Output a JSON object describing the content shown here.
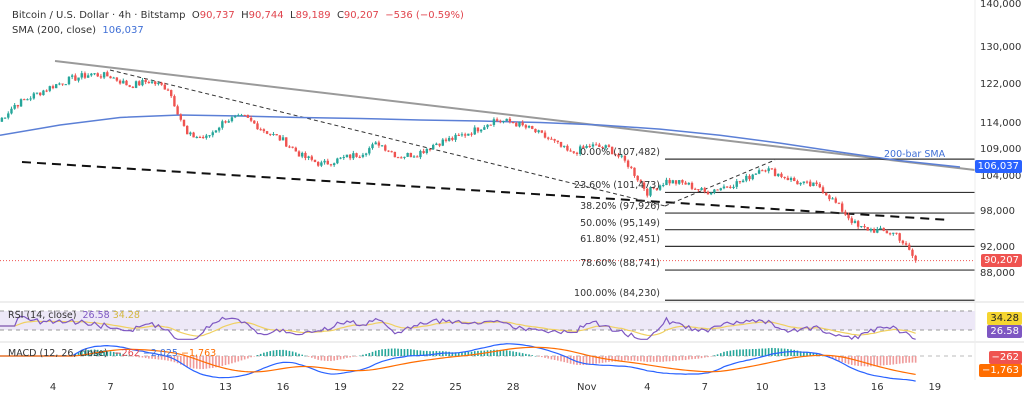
{
  "header": {
    "symbol": "Bitcoin / U.S. Dollar · 4h · Bitstamp",
    "o_label": "O",
    "o": "90,737",
    "h_label": "H",
    "h": "90,744",
    "l_label": "L",
    "l": "89,189",
    "c_label": "C",
    "c": "90,207",
    "change": "−536 (−0.59%)",
    "sma_label": "SMA (200, close)",
    "sma_value": "106,037"
  },
  "chart_data": {
    "type": "candlestick",
    "scale": "log",
    "ylim": [
      84000,
      140000
    ],
    "y_ticks": [
      "140,000",
      "130,000",
      "122,000",
      "114,000",
      "109,000",
      "104,000",
      "98,000",
      "92,000",
      "88,000"
    ],
    "y_tick_values": [
      140000,
      130000,
      122000,
      114000,
      109000,
      104000,
      98000,
      92000,
      88000
    ],
    "x_ticks": [
      "4",
      "7",
      "10",
      "13",
      "16",
      "19",
      "22",
      "25",
      "28",
      "Nov",
      "4",
      "7",
      "10",
      "13",
      "16",
      "19"
    ],
    "daily_closes": [
      114000,
      118000,
      120000,
      122000,
      123500,
      124500,
      124000,
      122000,
      123000,
      121500,
      112000,
      111500,
      115000,
      115500,
      113000,
      111000,
      108000,
      106500,
      107500,
      108500,
      110500,
      108000,
      108500,
      110500,
      111500,
      113000,
      115000,
      114500,
      113000,
      111000,
      108500,
      110000,
      109500,
      106500,
      101500,
      103500,
      103000,
      101500,
      102500,
      103500,
      106000,
      104500,
      103000,
      102500,
      99000,
      95500,
      95000,
      94500,
      90207
    ],
    "sma200": [
      112000,
      114000,
      115500,
      116000,
      115800,
      115500,
      115300,
      115000,
      114800,
      114500,
      114000,
      113200,
      112000,
      110500,
      108800,
      107200,
      106037
    ],
    "last_price": "90,207",
    "sma_tag": "106,037",
    "sma_annotation": "200-bar SMA",
    "fib_levels": [
      {
        "label": "0.00% (107,482)",
        "value": 107482
      },
      {
        "label": "23.60% (101,473)",
        "value": 101473
      },
      {
        "label": "38.20% (97,926)",
        "value": 97926
      },
      {
        "label": "50.00% (95,149)",
        "value": 95149
      },
      {
        "label": "61.80% (92,451)",
        "value": 92451
      },
      {
        "label": "78.60% (88,741)",
        "value": 88741
      },
      {
        "label": "100.00% (84,230)",
        "value": 84230
      }
    ],
    "colors": {
      "up": "#26a69a",
      "down": "#ef5350",
      "sma": "#5b7fd6",
      "rsi": "#7e57c2",
      "rsi_ma": "#f0d060",
      "macd": "#2962ff",
      "signal": "#ff6d00"
    }
  },
  "rsi": {
    "label": "RSI (14, close)",
    "value": "26.58",
    "ma_value": "34.28",
    "tag_ma": "34.28",
    "tag": "26.58"
  },
  "macd": {
    "label": "MACD (12, 26, close)",
    "hist": "−262",
    "macd": "−2,025",
    "signal": "−1,763",
    "tag_hist": "−262",
    "tag_signal": "−1,763"
  }
}
